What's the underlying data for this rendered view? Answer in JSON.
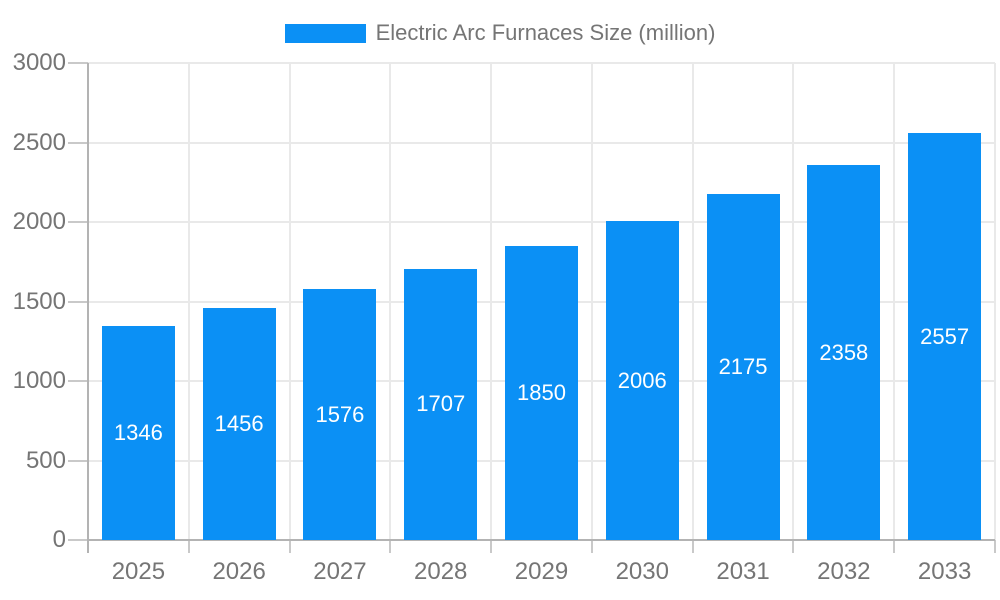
{
  "legend": {
    "label": "Electric Arc Furnaces Size (million)"
  },
  "chart_data": {
    "type": "bar",
    "title": "Electric Arc Furnaces Size (million)",
    "categories": [
      "2025",
      "2026",
      "2027",
      "2028",
      "2029",
      "2030",
      "2031",
      "2032",
      "2033"
    ],
    "values": [
      1346,
      1456,
      1576,
      1707,
      1850,
      2006,
      2175,
      2358,
      2557
    ],
    "xlabel": "",
    "ylabel": "",
    "ylim": [
      0,
      3000
    ],
    "yticks": [
      0,
      500,
      1000,
      1500,
      2000,
      2500,
      3000
    ],
    "grid": true,
    "legend_position": "top-center",
    "value_label_position": "inside-middle",
    "colors": {
      "bar": "#0b90f5",
      "value_label": "#ffffff",
      "axis_text": "#757575",
      "axis_line": "#b3b3b3",
      "grid_line": "#e9e9e9",
      "tick_line": "#c9c9c9",
      "background": "#ffffff"
    }
  }
}
